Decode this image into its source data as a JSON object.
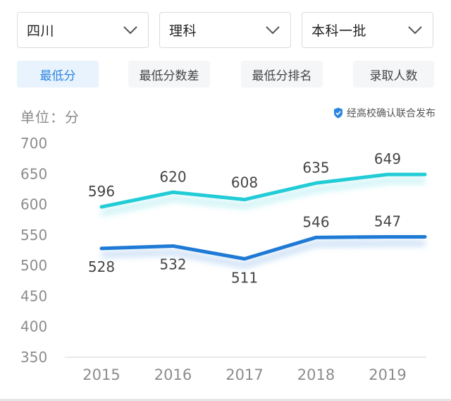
{
  "filters": [
    {
      "value": "四川",
      "icon": "chevron-down-icon"
    },
    {
      "value": "理科",
      "icon": "chevron-down-icon"
    },
    {
      "value": "本科一批",
      "icon": "chevron-down-icon"
    }
  ],
  "tabs": [
    {
      "label": "最低分",
      "active": true
    },
    {
      "label": "最低分数差",
      "active": false
    },
    {
      "label": "最低分排名",
      "active": false
    },
    {
      "label": "录取人数",
      "active": false
    }
  ],
  "unit_label": "单位：分",
  "source": {
    "icon": "shield-check-icon",
    "text": "经高校确认联合发布",
    "color": "#2a85e0"
  },
  "chart_data": {
    "type": "line",
    "categories": [
      "2015",
      "2016",
      "2017",
      "2018",
      "2019"
    ],
    "series": [
      {
        "values": [
          596,
          620,
          608,
          635,
          649
        ],
        "color": "#22ccd6"
      },
      {
        "values": [
          528,
          532,
          511,
          546,
          547
        ],
        "color": "#1f7ad6"
      }
    ],
    "yticks": [
      350,
      400,
      450,
      500,
      550,
      600,
      650,
      700
    ],
    "ylim": [
      350,
      700
    ],
    "grid": false
  }
}
